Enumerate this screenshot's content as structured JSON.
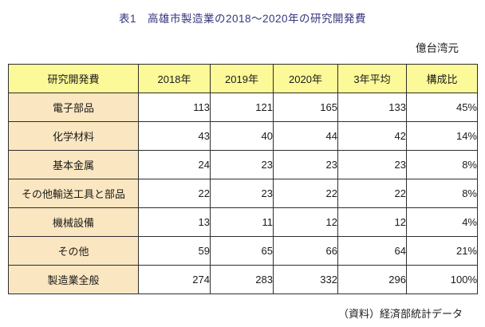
{
  "title": "表1　高雄市製造業の2018〜2020年の研究開発費",
  "unit_label": "億台湾元",
  "source_note": "（資料）経済部統計データ",
  "colors": {
    "title_text": "#35357e",
    "header_bg": "#fbf998",
    "label_bg": "#fae6c0",
    "border": "#2e2e2e",
    "body_text": "#1b1b1b"
  },
  "chart_data": {
    "type": "table",
    "title": "表1　高雄市製造業の2018〜2020年の研究開発費",
    "unit": "億台湾元",
    "columns": [
      "研究開発費",
      "2018年",
      "2019年",
      "2020年",
      "3年平均",
      "構成比"
    ],
    "rows": [
      {
        "label": "電子部品",
        "values": [
          "113",
          "121",
          "165",
          "133",
          "45%"
        ]
      },
      {
        "label": "化学材料",
        "values": [
          "43",
          "40",
          "44",
          "42",
          "14%"
        ]
      },
      {
        "label": "基本金属",
        "values": [
          "24",
          "23",
          "23",
          "23",
          "8%"
        ]
      },
      {
        "label": "その他輸送工具と部品",
        "values": [
          "22",
          "23",
          "22",
          "22",
          "8%"
        ]
      },
      {
        "label": "機械設備",
        "values": [
          "13",
          "11",
          "12",
          "12",
          "4%"
        ]
      },
      {
        "label": "その他",
        "values": [
          "59",
          "65",
          "66",
          "64",
          "21%"
        ]
      },
      {
        "label": "製造業全般",
        "values": [
          "274",
          "283",
          "332",
          "296",
          "100%"
        ]
      }
    ],
    "source": "（資料）経済部統計データ"
  }
}
